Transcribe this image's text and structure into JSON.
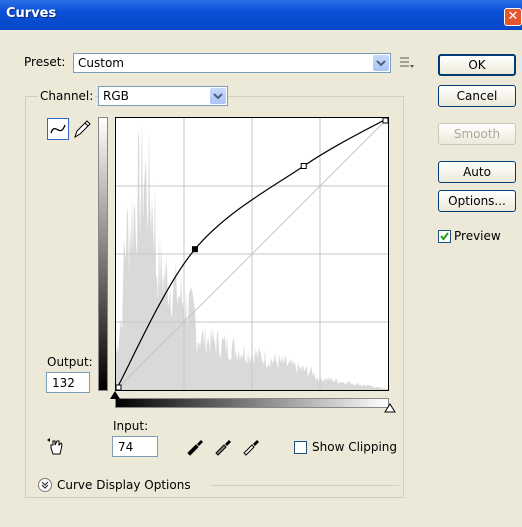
{
  "window": {
    "title": "Curves",
    "close_glyph": "✕"
  },
  "preset": {
    "label": "Preset:",
    "value": "Custom",
    "menu_icon": "preset-options-icon"
  },
  "channel": {
    "label": "Channel:",
    "value": "RGB"
  },
  "buttons": {
    "ok": "OK",
    "cancel": "Cancel",
    "smooth": "Smooth",
    "auto": "Auto",
    "options": "Options..."
  },
  "preview": {
    "label": "Preview",
    "checked": true
  },
  "output": {
    "label": "Output:",
    "value": "132"
  },
  "input": {
    "label": "Input:",
    "value": "74"
  },
  "show_clipping": {
    "label": "Show Clipping",
    "checked": false
  },
  "curve_display": {
    "label": "Curve Display Options",
    "icon": "expand-chevron-icon"
  },
  "curve": {
    "points": [
      [
        0,
        0
      ],
      [
        74,
        132
      ],
      [
        176,
        210
      ],
      [
        255,
        255
      ]
    ]
  }
}
